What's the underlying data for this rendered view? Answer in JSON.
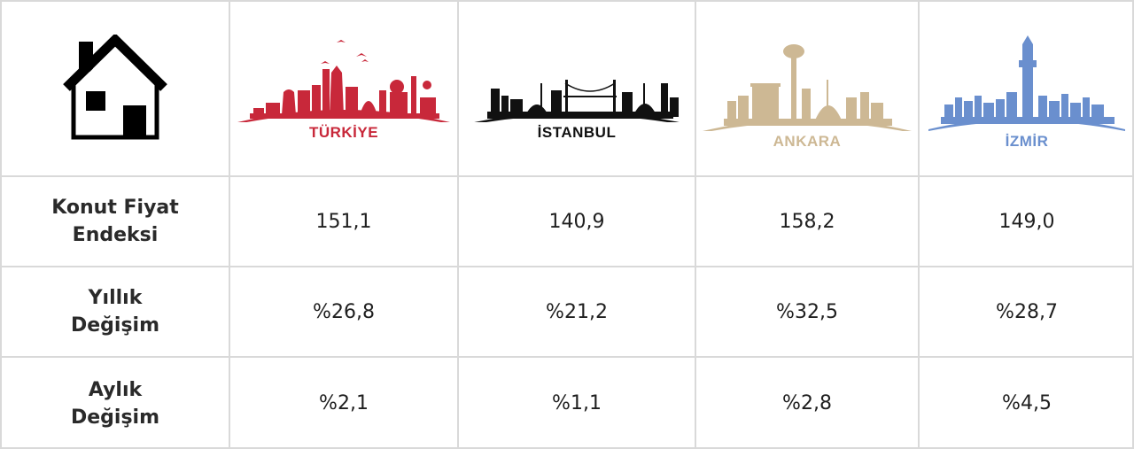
{
  "header": {
    "home_icon": "house-icon",
    "cities": [
      {
        "label": "TÜRKİYE",
        "color": "#c8283a"
      },
      {
        "label": "İSTANBUL",
        "color": "#111111"
      },
      {
        "label": "ANKARA",
        "color": "#cdb894"
      },
      {
        "label": "İZMİR",
        "color": "#6a8fce"
      }
    ]
  },
  "rows": [
    {
      "label_line1": "Konut Fiyat",
      "label_line2": "Endeksi",
      "values": [
        "151,1",
        "140,9",
        "158,2",
        "149,0"
      ]
    },
    {
      "label_line1": "Yıllık",
      "label_line2": "Değişim",
      "values": [
        "%26,8",
        "%21,2",
        "%32,5",
        "%28,7"
      ]
    },
    {
      "label_line1": "Aylık",
      "label_line2": "Değişim",
      "values": [
        "%2,1",
        "%1,1",
        "%2,8",
        "%4,5"
      ]
    }
  ]
}
